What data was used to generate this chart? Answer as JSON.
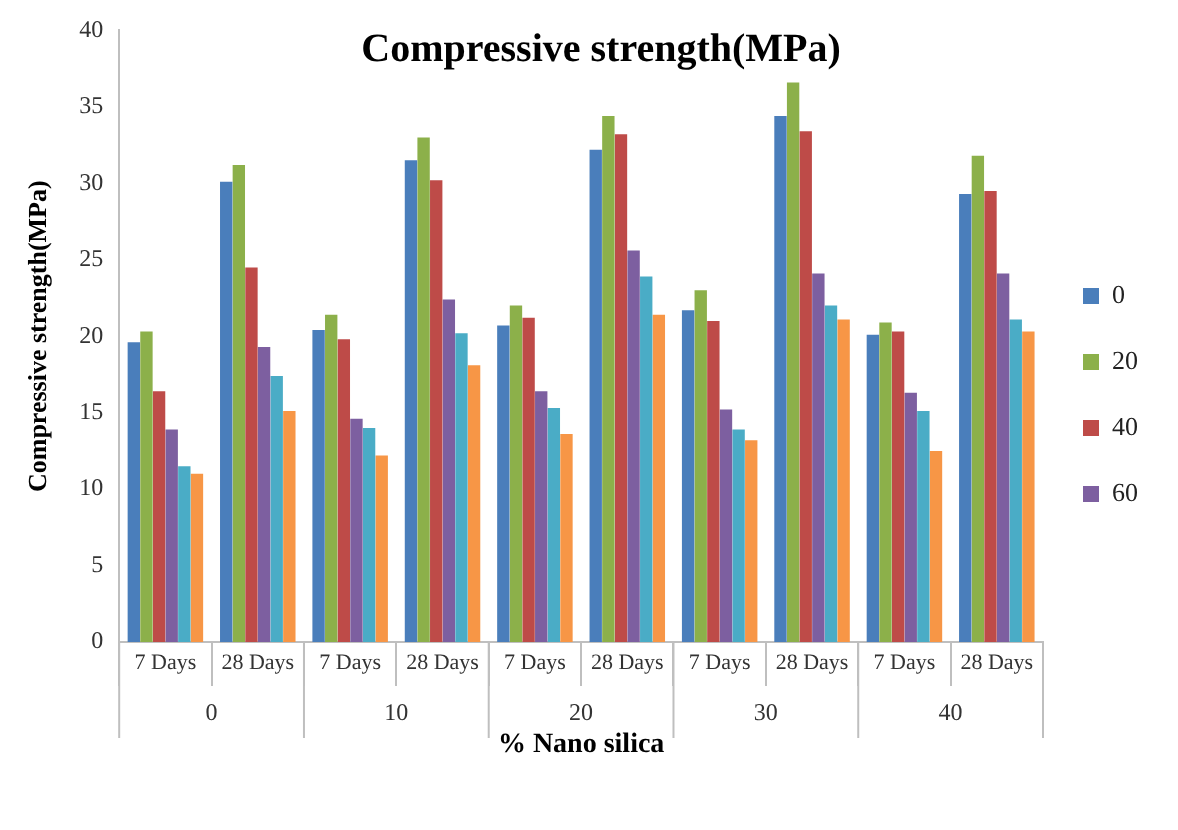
{
  "chart_data": {
    "type": "bar",
    "title": "Compressive strength(MPa)",
    "ylabel": "Compressive strength(MPa)",
    "xlabel": "% Nano silica",
    "categories": [
      "7 Days",
      "28 Days",
      "7 Days",
      "28 Days",
      "7 Days",
      "28 Days",
      "7 Days",
      "28 Days",
      "7 Days",
      "28 Days"
    ],
    "annotations": [
      "0",
      "10",
      "20",
      "30",
      "40"
    ],
    "series": [
      {
        "name": "0",
        "color": "#4a7ebb",
        "values": [
          19.6,
          30.1,
          20.4,
          31.5,
          20.7,
          32.2,
          21.7,
          34.4,
          20.1,
          29.3
        ]
      },
      {
        "name": "20",
        "color": "#8cb04a",
        "values": [
          20.3,
          31.2,
          21.4,
          33.0,
          22.0,
          34.4,
          23.0,
          36.6,
          20.9,
          31.8
        ]
      },
      {
        "name": "40",
        "color": "#be4b48",
        "values": [
          16.4,
          24.5,
          19.8,
          30.2,
          21.2,
          33.2,
          21.0,
          33.4,
          20.3,
          29.5
        ]
      },
      {
        "name": "60",
        "color": "#7d5fa0",
        "values": [
          13.9,
          19.3,
          14.6,
          22.4,
          16.4,
          25.6,
          15.2,
          24.1,
          16.3,
          24.1
        ]
      },
      {
        "color": "#4aacc6",
        "values": [
          11.5,
          17.4,
          14.0,
          20.2,
          15.3,
          23.9,
          13.9,
          22.0,
          15.1,
          21.1
        ]
      },
      {
        "color": "#f79646",
        "values": [
          11.0,
          15.1,
          12.2,
          18.1,
          13.6,
          21.4,
          13.2,
          21.1,
          12.5,
          20.3
        ]
      }
    ],
    "ylim": [
      0,
      40
    ],
    "yticks": [
      0,
      5,
      10,
      15,
      20,
      25,
      30,
      35,
      40
    ],
    "grid": false,
    "legend": "right"
  }
}
